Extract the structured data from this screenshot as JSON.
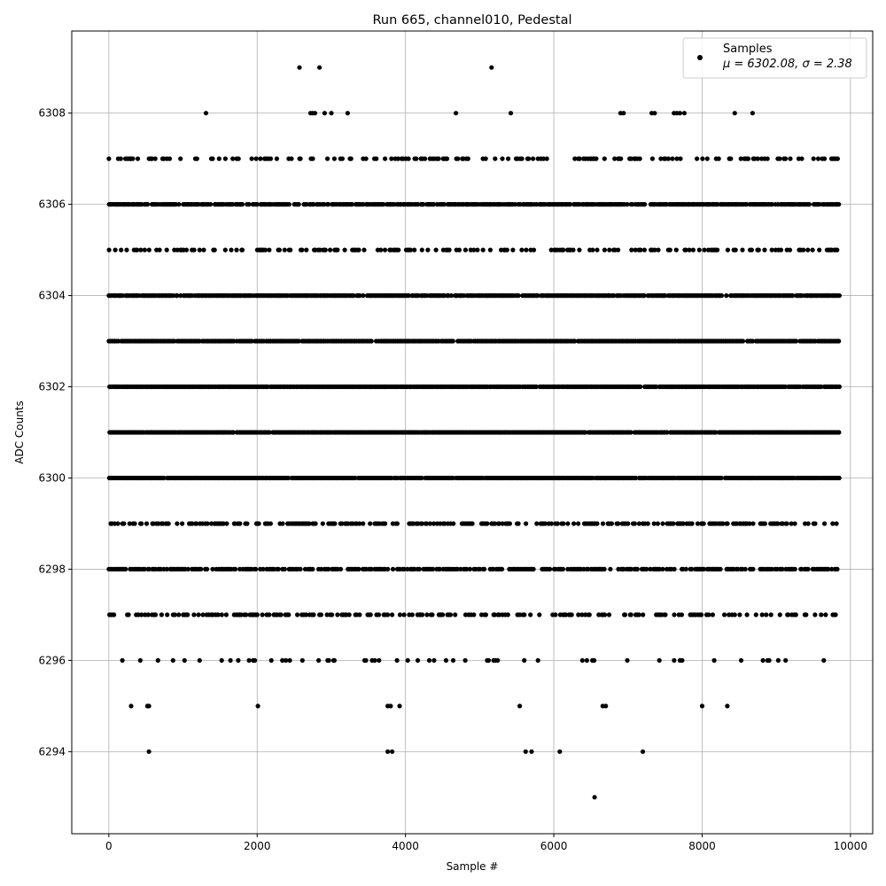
{
  "chart_data": {
    "type": "scatter",
    "title": "Run 665, channel010, Pedestal",
    "xlabel": "Sample #",
    "ylabel": "ADC Counts",
    "xlim": [
      -500,
      10300
    ],
    "ylim": [
      6292.2,
      6309.8
    ],
    "xticks": [
      0,
      2000,
      4000,
      6000,
      8000,
      10000
    ],
    "yticks": [
      6294,
      6296,
      6298,
      6300,
      6302,
      6304,
      6306,
      6308
    ],
    "grid": true,
    "legend_position": "top-right",
    "series": [
      {
        "name": "Samples",
        "color": "#000000",
        "marker": "dot",
        "stats": "μ = 6302.08, σ = 2.38",
        "sample_range": [
          0,
          9850
        ],
        "value_range": [
          6293,
          6309
        ],
        "levels": [
          {
            "y": 6309,
            "x": [
              2570,
              2840,
              5160
            ]
          },
          {
            "y": 6308,
            "x": [
              1310,
              2720,
              2750,
              2780,
              2910,
              3000,
              3220,
              4680,
              5420,
              6900,
              6940,
              7320,
              7360,
              7620,
              7660,
              7700,
              7760,
              8440,
              8680
            ]
          },
          {
            "y": 6294,
            "x": [
              540,
              3760,
              3820,
              5620,
              5700,
              6080,
              7200
            ]
          },
          {
            "y": 6293,
            "x": [
              6550
            ]
          },
          {
            "y": 6295,
            "x": [
              300,
              520,
              540,
              2010,
              3760,
              3800,
              3920,
              5540,
              6660,
              6700,
              8000,
              8340
            ]
          }
        ],
        "dense_levels": [
          {
            "y": 6307,
            "density": 0.38,
            "seed": 7
          },
          {
            "y": 6306,
            "density": 0.85,
            "seed": 13
          },
          {
            "y": 6305,
            "density": 0.38,
            "seed": 19
          },
          {
            "y": 6304,
            "density": 0.92,
            "seed": 23
          },
          {
            "y": 6303,
            "density": 0.95,
            "seed": 29
          },
          {
            "y": 6302,
            "density": 0.98,
            "seed": 31
          },
          {
            "y": 6301,
            "density": 0.99,
            "seed": 37
          },
          {
            "y": 6300,
            "density": 0.96,
            "seed": 41
          },
          {
            "y": 6299,
            "density": 0.55,
            "seed": 43
          },
          {
            "y": 6298,
            "density": 0.65,
            "seed": 47
          },
          {
            "y": 6297,
            "density": 0.38,
            "seed": 53
          },
          {
            "y": 6296,
            "density": 0.12,
            "seed": 59
          }
        ]
      }
    ]
  }
}
